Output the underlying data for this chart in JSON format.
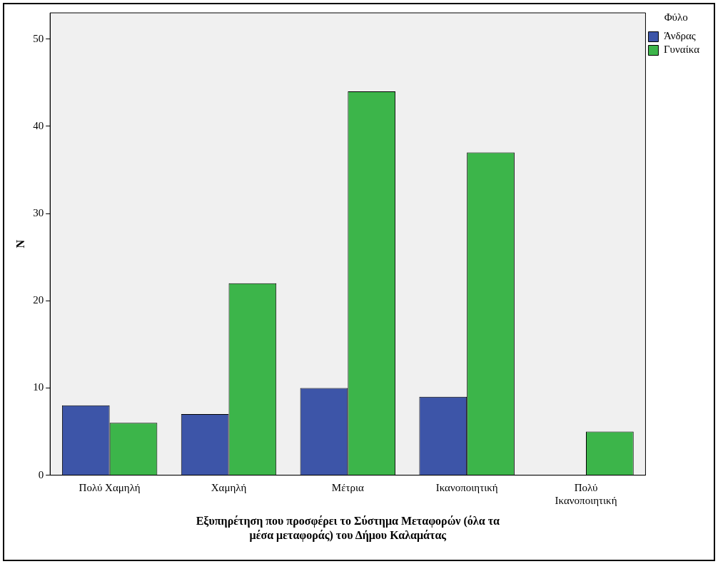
{
  "chart_data": {
    "type": "bar",
    "categories": [
      "Πολύ Χαμηλή",
      "Χαμηλή",
      "Μέτρια",
      "Ικανοποιητική",
      "Πολύ Ικανοποιητική"
    ],
    "series": [
      {
        "name": "Άνδρας",
        "color": "#3d55a8",
        "values": [
          8,
          7,
          10,
          9,
          null
        ]
      },
      {
        "name": "Γυναίκα",
        "color": "#3cb54a",
        "values": [
          6,
          22,
          44,
          37,
          5
        ]
      }
    ],
    "xlabel": "Εξυπηρέτηση που προσφέρει το Σύστημα Μεταφορών (όλα τα μέσα μεταφοράς) του Δήμου Καλαμάτας",
    "ylabel": "N",
    "legend_title": "Φύλο",
    "legend": "top right",
    "ylim": [
      0,
      53
    ],
    "yticks": [
      0,
      10,
      20,
      30,
      40,
      50
    ],
    "grid": false
  }
}
